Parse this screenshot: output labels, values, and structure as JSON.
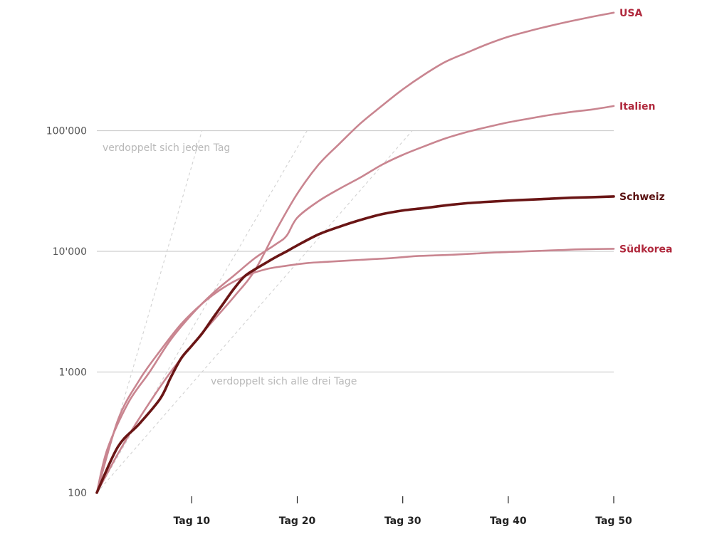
{
  "chart_data": {
    "type": "line",
    "yscale": "log",
    "ylim": [
      100,
      1000000
    ],
    "xlim": [
      1,
      50
    ],
    "yticks": [
      {
        "value": 100,
        "label": "100"
      },
      {
        "value": 1000,
        "label": "1'000"
      },
      {
        "value": 10000,
        "label": "10'000"
      },
      {
        "value": 100000,
        "label": "100'000"
      }
    ],
    "xticks": [
      {
        "value": 10,
        "label": "Tag 10"
      },
      {
        "value": 20,
        "label": "Tag 20"
      },
      {
        "value": 30,
        "label": "Tag 30"
      },
      {
        "value": 40,
        "label": "Tag 40"
      },
      {
        "value": 50,
        "label": "Tag 50"
      }
    ],
    "grid": true,
    "series": [
      {
        "name": "USA",
        "color": "#c98590",
        "label_color": "#b0293d",
        "emphasis": false,
        "points": [
          [
            1,
            100
          ],
          [
            3,
            210
          ],
          [
            5,
            410
          ],
          [
            8,
            1000
          ],
          [
            11,
            2100
          ],
          [
            14,
            4200
          ],
          [
            16,
            7000
          ],
          [
            18,
            15000
          ],
          [
            20,
            30000
          ],
          [
            22,
            52000
          ],
          [
            24,
            78000
          ],
          [
            26,
            115000
          ],
          [
            28,
            160000
          ],
          [
            30,
            220000
          ],
          [
            32,
            290000
          ],
          [
            34,
            370000
          ],
          [
            36,
            440000
          ],
          [
            38,
            520000
          ],
          [
            40,
            600000
          ],
          [
            42,
            670000
          ],
          [
            44,
            740000
          ],
          [
            46,
            810000
          ],
          [
            48,
            880000
          ],
          [
            50,
            950000
          ]
        ]
      },
      {
        "name": "Italien",
        "color": "#c98590",
        "label_color": "#b0293d",
        "emphasis": false,
        "points": [
          [
            1,
            100
          ],
          [
            2,
            230
          ],
          [
            4,
            560
          ],
          [
            6,
            1000
          ],
          [
            8,
            1850
          ],
          [
            10,
            3000
          ],
          [
            12,
            4500
          ],
          [
            14,
            6300
          ],
          [
            16,
            8800
          ],
          [
            18,
            11500
          ],
          [
            19,
            13500
          ],
          [
            20,
            19000
          ],
          [
            22,
            26000
          ],
          [
            24,
            33000
          ],
          [
            26,
            41000
          ],
          [
            28,
            52000
          ],
          [
            30,
            63000
          ],
          [
            32,
            74000
          ],
          [
            34,
            86000
          ],
          [
            36,
            97000
          ],
          [
            38,
            107000
          ],
          [
            40,
            117000
          ],
          [
            42,
            126000
          ],
          [
            44,
            135000
          ],
          [
            46,
            143000
          ],
          [
            48,
            150000
          ],
          [
            50,
            160000
          ]
        ]
      },
      {
        "name": "Schweiz",
        "color": "#6a1515",
        "label_color": "#5a1212",
        "emphasis": true,
        "points": [
          [
            1,
            100
          ],
          [
            3,
            240
          ],
          [
            5,
            370
          ],
          [
            7,
            600
          ],
          [
            8,
            900
          ],
          [
            9,
            1300
          ],
          [
            10,
            1650
          ],
          [
            11,
            2100
          ],
          [
            12,
            2800
          ],
          [
            13,
            3700
          ],
          [
            14,
            4900
          ],
          [
            15,
            6200
          ],
          [
            16,
            7100
          ],
          [
            17,
            8000
          ],
          [
            18,
            9000
          ],
          [
            19,
            10000
          ],
          [
            20,
            11200
          ],
          [
            22,
            13800
          ],
          [
            24,
            16000
          ],
          [
            26,
            18200
          ],
          [
            28,
            20300
          ],
          [
            30,
            21800
          ],
          [
            32,
            22800
          ],
          [
            34,
            24000
          ],
          [
            36,
            25000
          ],
          [
            38,
            25700
          ],
          [
            40,
            26300
          ],
          [
            42,
            26800
          ],
          [
            44,
            27300
          ],
          [
            46,
            27800
          ],
          [
            48,
            28100
          ],
          [
            50,
            28500
          ]
        ]
      },
      {
        "name": "Südkorea",
        "color": "#c98590",
        "label_color": "#b0293d",
        "emphasis": false,
        "points": [
          [
            1,
            100
          ],
          [
            3,
            400
          ],
          [
            5,
            850
          ],
          [
            7,
            1500
          ],
          [
            9,
            2500
          ],
          [
            11,
            3700
          ],
          [
            13,
            5000
          ],
          [
            15,
            6200
          ],
          [
            17,
            7100
          ],
          [
            19,
            7600
          ],
          [
            21,
            8000
          ],
          [
            23,
            8200
          ],
          [
            25,
            8400
          ],
          [
            27,
            8600
          ],
          [
            29,
            8800
          ],
          [
            31,
            9100
          ],
          [
            33,
            9250
          ],
          [
            35,
            9400
          ],
          [
            37,
            9600
          ],
          [
            39,
            9800
          ],
          [
            41,
            9950
          ],
          [
            43,
            10100
          ],
          [
            45,
            10250
          ],
          [
            47,
            10400
          ],
          [
            50,
            10500
          ]
        ]
      }
    ],
    "annotations": [
      {
        "text": "verdoppelt sich jeden Tag",
        "doubling_days": 1
      },
      {
        "text": "",
        "doubling_days": 2
      },
      {
        "text": "verdoppelt sich alle drei Tage",
        "doubling_days": 3
      }
    ]
  }
}
